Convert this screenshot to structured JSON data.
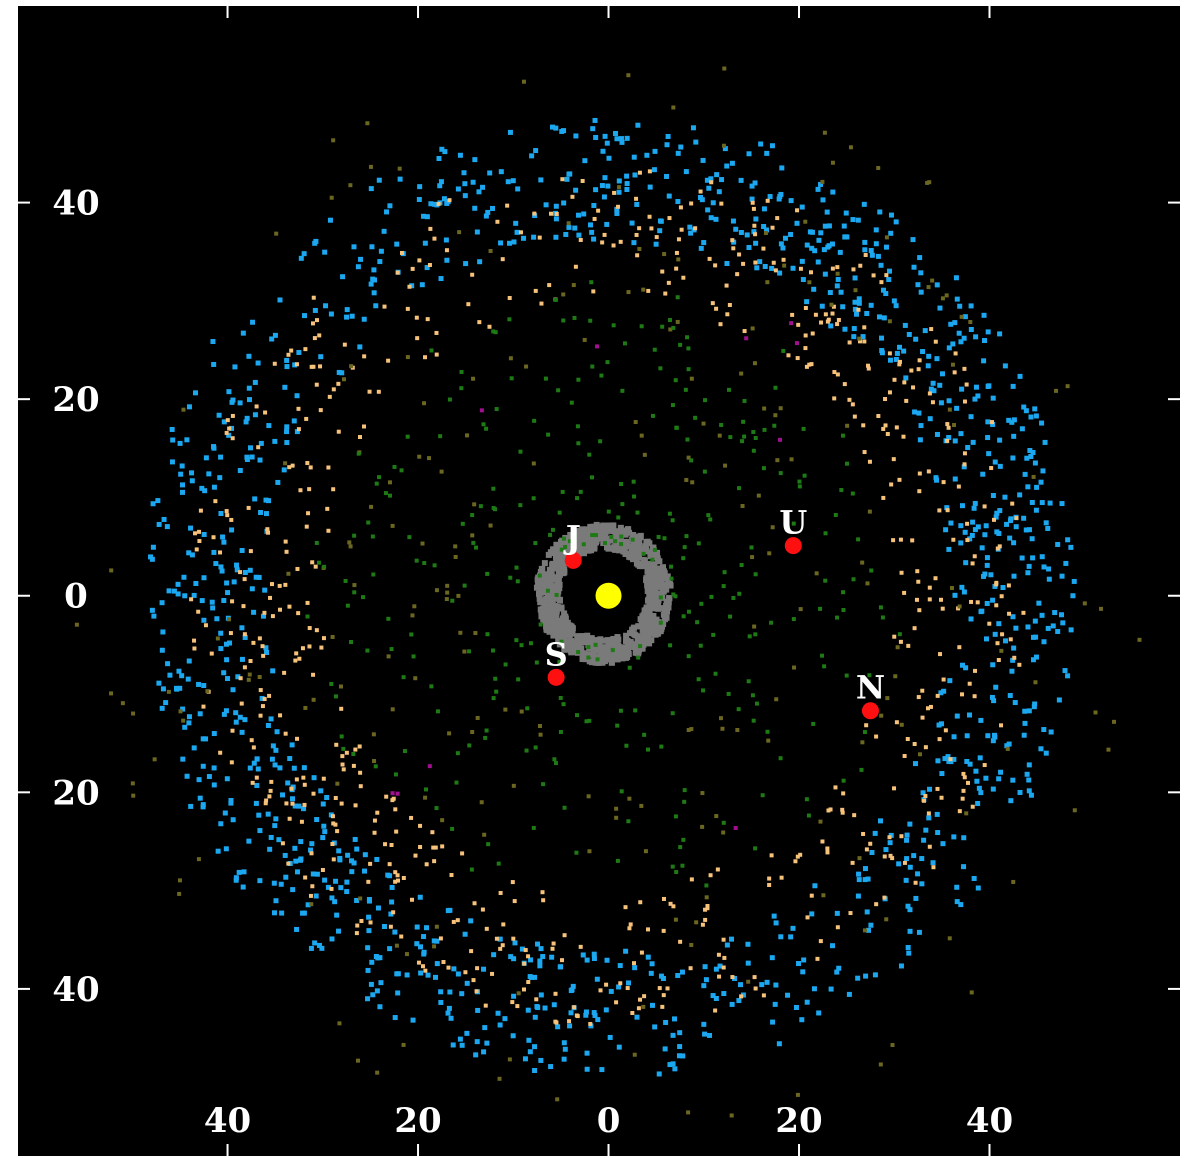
{
  "chart_data": {
    "type": "scatter",
    "title": "",
    "xlabel": "",
    "ylabel": "",
    "xlim": [
      -62,
      60
    ],
    "ylim": [
      -57,
      60
    ],
    "grid": false,
    "background": "#000000",
    "x_ticks": [
      {
        "value": -40,
        "label": "40"
      },
      {
        "value": -20,
        "label": "20"
      },
      {
        "value": 0,
        "label": "0"
      },
      {
        "value": 20,
        "label": "20"
      },
      {
        "value": 40,
        "label": "40"
      }
    ],
    "y_ticks": [
      {
        "value": 40,
        "label": "40"
      },
      {
        "value": 20,
        "label": "20"
      },
      {
        "value": 0,
        "label": "0"
      },
      {
        "value": -20,
        "label": "20"
      },
      {
        "value": -40,
        "label": "40"
      }
    ],
    "colors": {
      "sun": "#ffff00",
      "planet": "#ff1010",
      "asteroid_belt": "#7a7a7a",
      "blue_objects": "#1ba8f0",
      "orange_objects": "#f7c27a",
      "green_objects": "#1e7a14",
      "olive_objects": "#6b6620",
      "magenta_objects": "#a01090"
    },
    "sun": {
      "x": 0,
      "y": 0
    },
    "asteroid_belt": {
      "x": -0.5,
      "y": 0.2,
      "radius_min": 4.6,
      "radius_max": 7.1
    },
    "planets": [
      {
        "label": "J",
        "x": -3.7,
        "y": 3.6
      },
      {
        "label": "S",
        "x": -5.5,
        "y": -8.3
      },
      {
        "label": "U",
        "x": 19.4,
        "y": 5.1
      },
      {
        "label": "N",
        "x": 27.5,
        "y": -11.7
      }
    ],
    "series": [
      {
        "group": "blue_objects",
        "count": 1150,
        "ring": [
          36,
          49
        ],
        "spread": 0.55
      },
      {
        "group": "orange_objects",
        "count": 620,
        "ring": [
          30,
          44
        ],
        "spread": 0.5
      },
      {
        "group": "olive_objects",
        "count": 240,
        "ring": [
          14,
          56
        ],
        "spread": 0.9
      },
      {
        "group": "green_objects",
        "count": 320,
        "ring": [
          5,
          32
        ],
        "spread": 1.0
      },
      {
        "group": "magenta_objects",
        "count": 10,
        "ring": [
          20,
          34
        ],
        "spread": 1.0
      }
    ]
  }
}
